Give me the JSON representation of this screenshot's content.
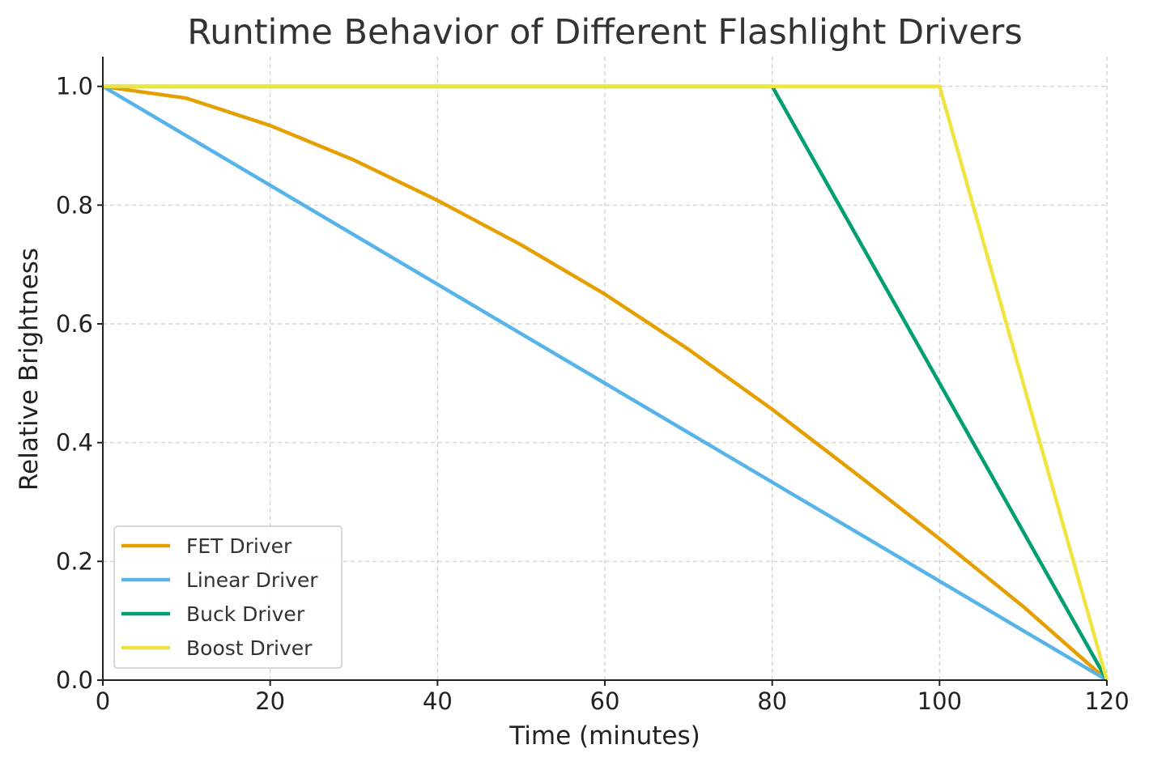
{
  "chart_data": {
    "type": "line",
    "title": "Runtime Behavior of Different Flashlight Drivers",
    "xlabel": "Time (minutes)",
    "ylabel": "Relative Brightness",
    "xlim": [
      0,
      120
    ],
    "ylim": [
      0,
      1.05
    ],
    "xticks": [
      0,
      20,
      40,
      60,
      80,
      100,
      120
    ],
    "xtick_labels": [
      "0",
      "20",
      "40",
      "60",
      "80",
      "100",
      "120"
    ],
    "yticks": [
      0.0,
      0.2,
      0.4,
      0.6,
      0.8,
      1.0
    ],
    "ytick_labels": [
      "0.0",
      "0.2",
      "0.4",
      "0.6",
      "0.8",
      "1.0"
    ],
    "grid": true,
    "legend_position": "lower-left",
    "series": [
      {
        "name": "FET Driver",
        "color": "#E69F00",
        "x": [
          0,
          10,
          20,
          30,
          40,
          50,
          60,
          70,
          80,
          90,
          100,
          110,
          120
        ],
        "y": [
          1.0,
          0.98,
          0.934,
          0.876,
          0.808,
          0.733,
          0.65,
          0.557,
          0.456,
          0.348,
          0.238,
          0.124,
          0.0
        ]
      },
      {
        "name": "Linear Driver",
        "color": "#56B4E9",
        "x": [
          0,
          120
        ],
        "y": [
          1.0,
          0.0
        ]
      },
      {
        "name": "Buck Driver",
        "color": "#009E73",
        "x": [
          0,
          80,
          120
        ],
        "y": [
          1.0,
          1.0,
          0.0
        ]
      },
      {
        "name": "Boost Driver",
        "color": "#F0E442",
        "x": [
          0,
          100,
          120
        ],
        "y": [
          1.0,
          1.0,
          0.0
        ]
      }
    ]
  }
}
